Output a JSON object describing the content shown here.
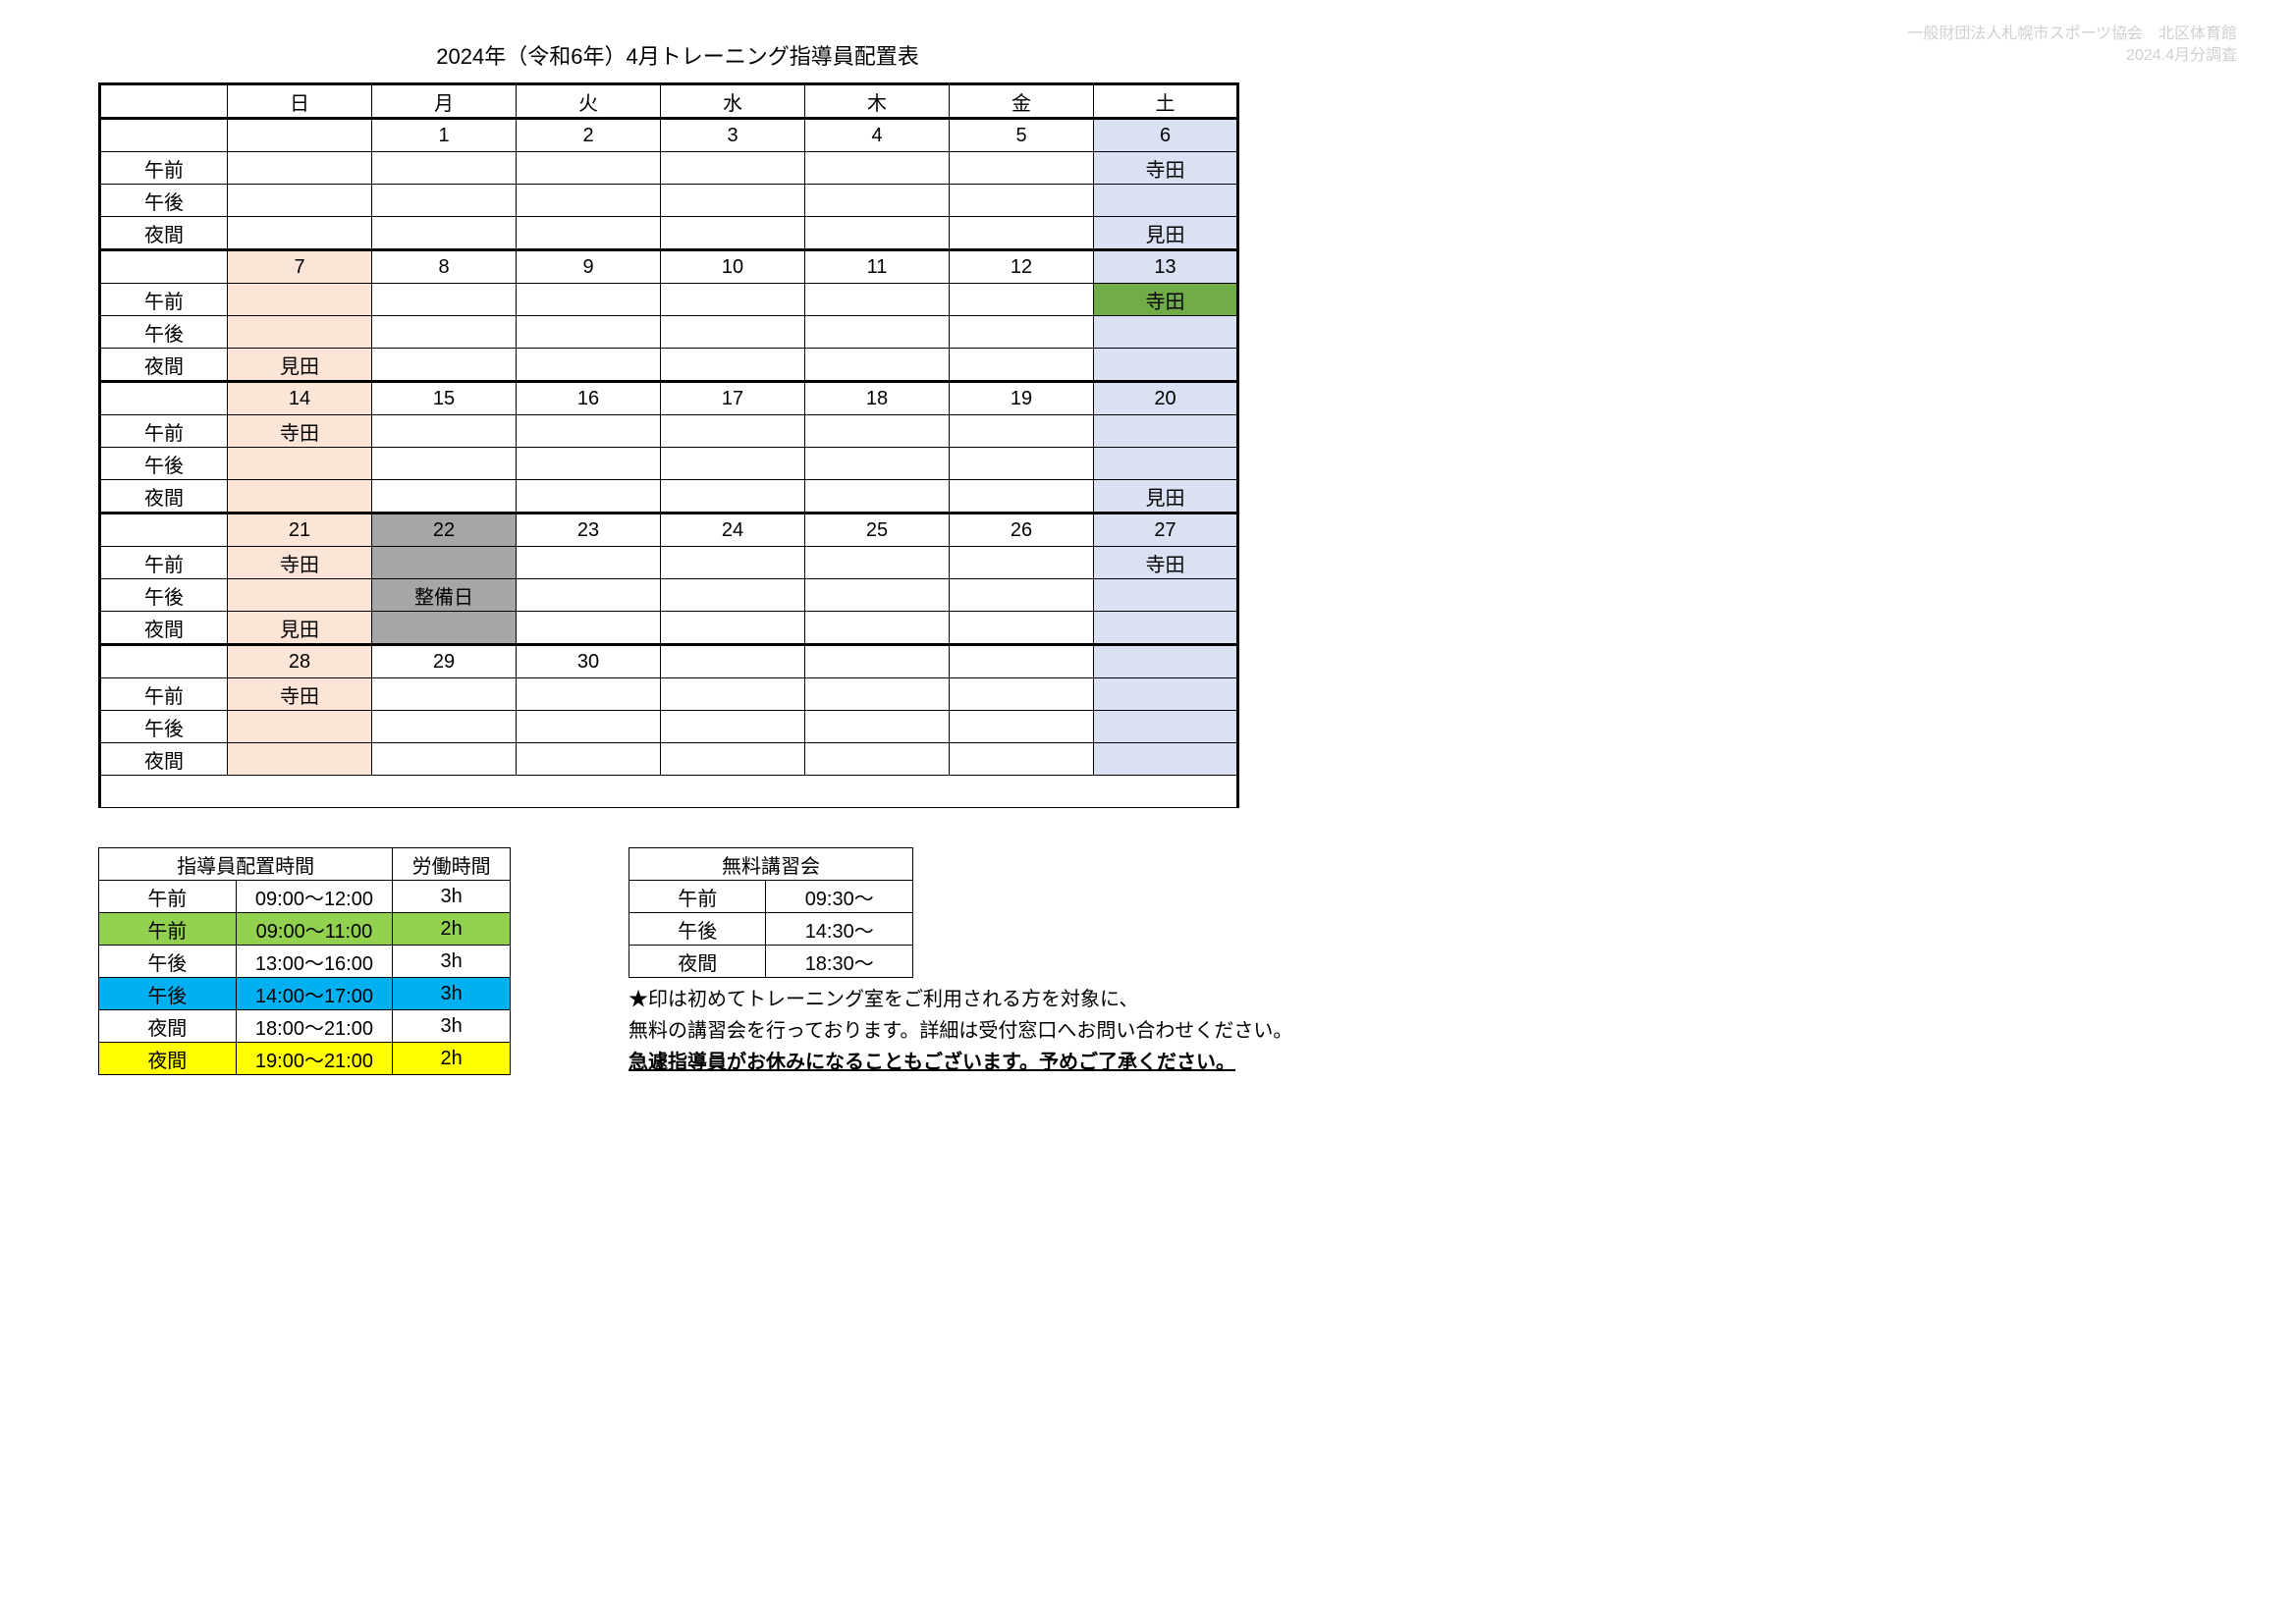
{
  "header": {
    "org": "一般財団法人札幌市スポーツ協会　北区体育館",
    "survey": "2024.4月分調査"
  },
  "title": "2024年（令和6年）4月トレーニング指導員配置表",
  "colors": {
    "sunday_bg": "#fce4d6",
    "saturday_bg": "#d9e1f2",
    "green_bg": "#70ad47",
    "gray_bg": "#a6a6a6",
    "blue_bg": "#00b0f0",
    "yellow_bg": "#ffff00",
    "lime_bg": "#92d050",
    "border": "#000000"
  },
  "days": [
    "日",
    "月",
    "火",
    "水",
    "木",
    "金",
    "土"
  ],
  "row_labels": [
    "午前",
    "午後",
    "夜間"
  ],
  "weeks": [
    {
      "dates": [
        "",
        "1",
        "2",
        "3",
        "4",
        "5",
        "6"
      ],
      "date_bg": [
        "",
        "",
        "",
        "",
        "",
        "",
        "saturday_bg"
      ],
      "rows": [
        {
          "cells": [
            "",
            "",
            "",
            "",
            "",
            "",
            "寺田"
          ],
          "bg": [
            "",
            "",
            "",
            "",
            "",
            "",
            "saturday_bg"
          ]
        },
        {
          "cells": [
            "",
            "",
            "",
            "",
            "",
            "",
            ""
          ],
          "bg": [
            "",
            "",
            "",
            "",
            "",
            "",
            "saturday_bg"
          ]
        },
        {
          "cells": [
            "",
            "",
            "",
            "",
            "",
            "",
            "見田"
          ],
          "bg": [
            "",
            "",
            "",
            "",
            "",
            "",
            "saturday_bg"
          ]
        }
      ]
    },
    {
      "dates": [
        "7",
        "8",
        "9",
        "10",
        "11",
        "12",
        "13"
      ],
      "date_bg": [
        "sunday_bg",
        "",
        "",
        "",
        "",
        "",
        "saturday_bg"
      ],
      "rows": [
        {
          "cells": [
            "",
            "",
            "",
            "",
            "",
            "",
            "寺田"
          ],
          "bg": [
            "sunday_bg",
            "",
            "",
            "",
            "",
            "",
            "green_bg"
          ]
        },
        {
          "cells": [
            "",
            "",
            "",
            "",
            "",
            "",
            ""
          ],
          "bg": [
            "sunday_bg",
            "",
            "",
            "",
            "",
            "",
            "saturday_bg"
          ]
        },
        {
          "cells": [
            "見田",
            "",
            "",
            "",
            "",
            "",
            ""
          ],
          "bg": [
            "sunday_bg",
            "",
            "",
            "",
            "",
            "",
            "saturday_bg"
          ]
        }
      ]
    },
    {
      "dates": [
        "14",
        "15",
        "16",
        "17",
        "18",
        "19",
        "20"
      ],
      "date_bg": [
        "sunday_bg",
        "",
        "",
        "",
        "",
        "",
        "saturday_bg"
      ],
      "rows": [
        {
          "cells": [
            "寺田",
            "",
            "",
            "",
            "",
            "",
            ""
          ],
          "bg": [
            "sunday_bg",
            "",
            "",
            "",
            "",
            "",
            "saturday_bg"
          ]
        },
        {
          "cells": [
            "",
            "",
            "",
            "",
            "",
            "",
            ""
          ],
          "bg": [
            "sunday_bg",
            "",
            "",
            "",
            "",
            "",
            "saturday_bg"
          ]
        },
        {
          "cells": [
            "",
            "",
            "",
            "",
            "",
            "",
            "見田"
          ],
          "bg": [
            "sunday_bg",
            "",
            "",
            "",
            "",
            "",
            "saturday_bg"
          ]
        }
      ]
    },
    {
      "dates": [
        "21",
        "22",
        "23",
        "24",
        "25",
        "26",
        "27"
      ],
      "date_bg": [
        "sunday_bg",
        "gray_bg",
        "",
        "",
        "",
        "",
        "saturday_bg"
      ],
      "rows": [
        {
          "cells": [
            "寺田",
            "",
            "",
            "",
            "",
            "",
            "寺田"
          ],
          "bg": [
            "sunday_bg",
            "gray_bg",
            "",
            "",
            "",
            "",
            "saturday_bg"
          ]
        },
        {
          "cells": [
            "",
            "整備日",
            "",
            "",
            "",
            "",
            ""
          ],
          "bg": [
            "sunday_bg",
            "gray_bg",
            "",
            "",
            "",
            "",
            "saturday_bg"
          ]
        },
        {
          "cells": [
            "見田",
            "",
            "",
            "",
            "",
            "",
            ""
          ],
          "bg": [
            "sunday_bg",
            "gray_bg",
            "",
            "",
            "",
            "",
            "saturday_bg"
          ]
        }
      ]
    },
    {
      "dates": [
        "28",
        "29",
        "30",
        "",
        "",
        "",
        ""
      ],
      "date_bg": [
        "sunday_bg",
        "",
        "",
        "",
        "",
        "",
        "saturday_bg"
      ],
      "rows": [
        {
          "cells": [
            "寺田",
            "",
            "",
            "",
            "",
            "",
            ""
          ],
          "bg": [
            "sunday_bg",
            "",
            "",
            "",
            "",
            "",
            "saturday_bg"
          ]
        },
        {
          "cells": [
            "",
            "",
            "",
            "",
            "",
            "",
            ""
          ],
          "bg": [
            "sunday_bg",
            "",
            "",
            "",
            "",
            "",
            "saturday_bg"
          ]
        },
        {
          "cells": [
            "",
            "",
            "",
            "",
            "",
            "",
            ""
          ],
          "bg": [
            "sunday_bg",
            "",
            "",
            "",
            "",
            "",
            "saturday_bg"
          ]
        }
      ]
    }
  ],
  "placement_table": {
    "header": [
      "指導員配置時間",
      "労働時間"
    ],
    "rows": [
      {
        "cells": [
          "午前",
          "09:00～12:00",
          "3h"
        ],
        "bg": ""
      },
      {
        "cells": [
          "午前",
          "09:00～11:00",
          "2h"
        ],
        "bg": "lime_bg"
      },
      {
        "cells": [
          "午後",
          "13:00～16:00",
          "3h"
        ],
        "bg": ""
      },
      {
        "cells": [
          "午後",
          "14:00～17:00",
          "3h"
        ],
        "bg": "blue_bg"
      },
      {
        "cells": [
          "夜間",
          "18:00～21:00",
          "3h"
        ],
        "bg": ""
      },
      {
        "cells": [
          "夜間",
          "19:00～21:00",
          "2h"
        ],
        "bg": "yellow_bg"
      }
    ]
  },
  "free_session_table": {
    "header": "無料講習会",
    "rows": [
      {
        "cells": [
          "午前",
          "09:30～"
        ]
      },
      {
        "cells": [
          "午後",
          "14:30～"
        ]
      },
      {
        "cells": [
          "夜間",
          "18:30～"
        ]
      }
    ]
  },
  "notes": {
    "line1": "★印は初めてトレーニング室をご利用される方を対象に、",
    "line2": "無料の講習会を行っております。詳細は受付窓口へお問い合わせください。",
    "line3": "急遽指導員がお休みになることもございます。予めご了承ください。"
  }
}
